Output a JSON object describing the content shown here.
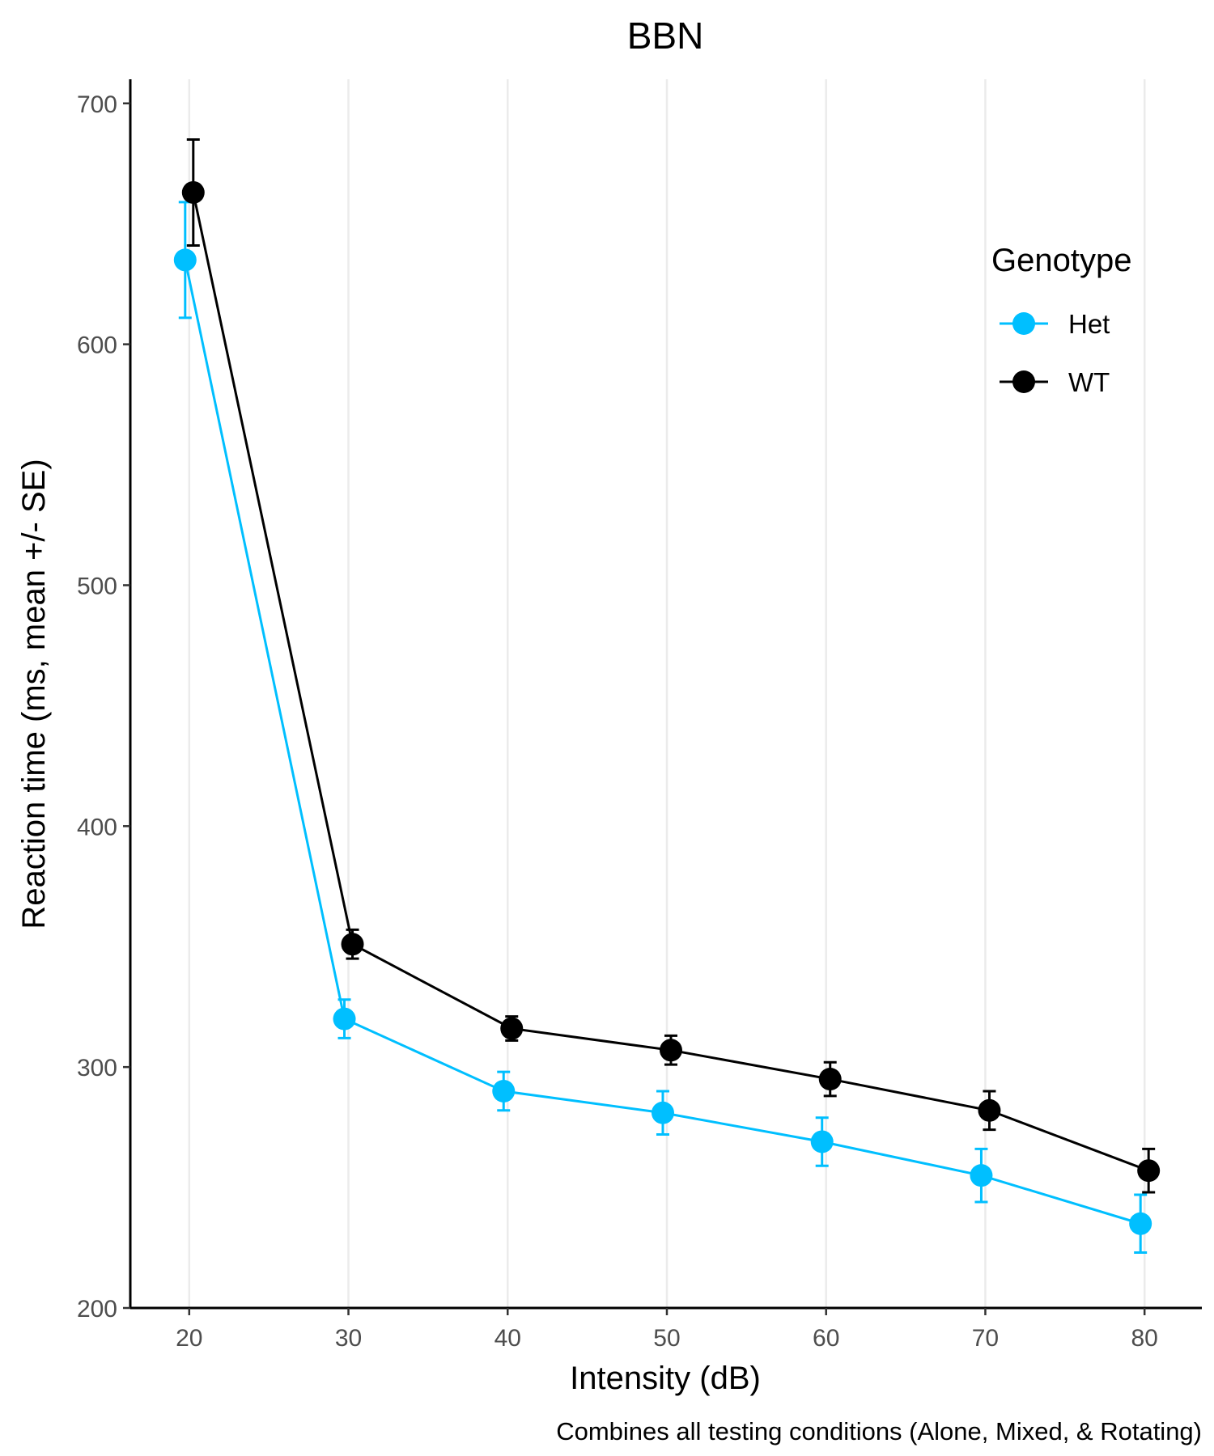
{
  "chart_data": {
    "type": "line",
    "title": "BBN",
    "xlabel": "Intensity (dB)",
    "ylabel": "Reaction time (ms, mean +/- SE)",
    "caption": "Combines all testing conditions (Alone, Mixed, & Rotating)",
    "x": [
      20,
      30,
      40,
      50,
      60,
      70,
      80
    ],
    "xlim": [
      16.3,
      83.6
    ],
    "ylim": [
      200,
      710
    ],
    "x_ticks": [
      20,
      30,
      40,
      50,
      60,
      70,
      80
    ],
    "y_ticks": [
      200,
      300,
      400,
      500,
      600,
      700
    ],
    "grid": "vertical major lines only",
    "legend": {
      "title": "Genotype",
      "position": "top-right"
    },
    "series": [
      {
        "name": "Het",
        "color": "#00BFFF",
        "values": [
          635,
          320,
          290,
          281,
          269,
          255,
          235
        ],
        "se": [
          24,
          8,
          8,
          9,
          10,
          11,
          12
        ]
      },
      {
        "name": "WT",
        "color": "#000000",
        "values": [
          663,
          351,
          316,
          307,
          295,
          282,
          257
        ],
        "se": [
          22,
          6,
          5,
          6,
          7,
          8,
          9
        ]
      }
    ]
  }
}
